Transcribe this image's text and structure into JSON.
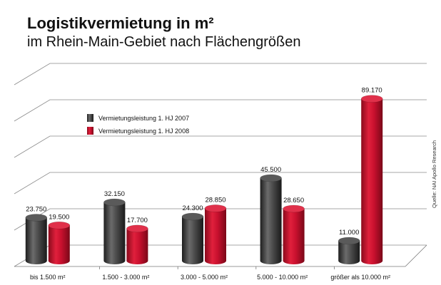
{
  "title": "Logistikvermietung in m²",
  "subtitle": "im Rhein-Main-Gebiet nach Flächengrößen",
  "source": "Quelle: NAI Apollo Research",
  "colors": {
    "series_2007": "#3a3a3a",
    "series_2008": "#c8102e"
  },
  "chart_data": {
    "type": "bar",
    "categories": [
      "bis 1.500 m²",
      "1.500 - 3.000 m²",
      "3.000 - 5.000 m²",
      "5.000 - 10.000 m²",
      "größer als 10.000 m²"
    ],
    "series": [
      {
        "name": "Vermietungsleistung 1. HJ 2007",
        "values": [
          23750,
          32150,
          24300,
          45500,
          11000
        ],
        "labels": [
          "23.750",
          "32.150",
          "24.300",
          "45.500",
          "11.000"
        ]
      },
      {
        "name": "Vermietungsleistung 1. HJ 2008",
        "values": [
          19500,
          17700,
          28850,
          28650,
          89170
        ],
        "labels": [
          "19.500",
          "17.700",
          "28.850",
          "28.650",
          "89.170"
        ]
      }
    ],
    "ylim": [
      0,
      100000
    ],
    "grid": true,
    "legend": "top-left"
  }
}
